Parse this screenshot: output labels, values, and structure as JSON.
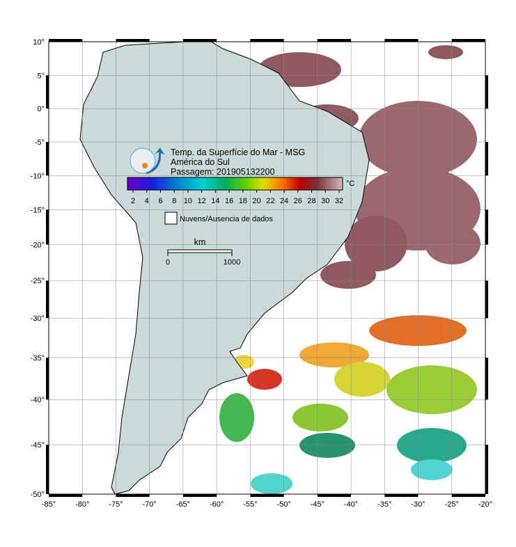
{
  "map": {
    "title": "Temp. da Superfície do Mar - MSG",
    "region": "América do Sul",
    "pass": "Passagem: 201905132200",
    "unit": "°C",
    "colorbar_ticks": [
      2,
      4,
      6,
      8,
      10,
      12,
      14,
      16,
      18,
      20,
      22,
      24,
      26,
      28,
      30,
      32
    ],
    "legend": "Nuvens/Ausencia de dados",
    "scale_unit": "km",
    "scale_ticks": [
      0,
      1000
    ],
    "lon_ticks": [
      {
        "value": -85,
        "label": "-85°"
      },
      {
        "value": -80,
        "label": "-80°"
      },
      {
        "value": -75,
        "label": "-75°"
      },
      {
        "value": -70,
        "label": "-70°"
      },
      {
        "value": -65,
        "label": "-65°"
      },
      {
        "value": -60,
        "label": "-60°"
      },
      {
        "value": -55,
        "label": "-55°"
      },
      {
        "value": -50,
        "label": "-50°"
      },
      {
        "value": -45,
        "label": "-45°"
      },
      {
        "value": -40,
        "label": "-40°"
      },
      {
        "value": -35,
        "label": "-35°"
      },
      {
        "value": -30,
        "label": "-30°"
      },
      {
        "value": -25,
        "label": "-25°"
      },
      {
        "value": -20,
        "label": "-20°"
      }
    ],
    "lat_ticks": [
      {
        "value": 10,
        "label": "10°"
      },
      {
        "value": 5,
        "label": "5°"
      },
      {
        "value": 0,
        "label": "0°"
      },
      {
        "value": -5,
        "label": "-5°"
      },
      {
        "value": -10,
        "label": "-10°"
      },
      {
        "value": -15,
        "label": "-15°"
      },
      {
        "value": -20,
        "label": "-20°"
      },
      {
        "value": -25,
        "label": "-25°"
      },
      {
        "value": -30,
        "label": "-30°"
      },
      {
        "value": -35,
        "label": "-35°"
      },
      {
        "value": -40,
        "label": "-40°"
      },
      {
        "value": -45,
        "label": "-45°"
      },
      {
        "value": -50,
        "label": "-50°"
      }
    ]
  }
}
